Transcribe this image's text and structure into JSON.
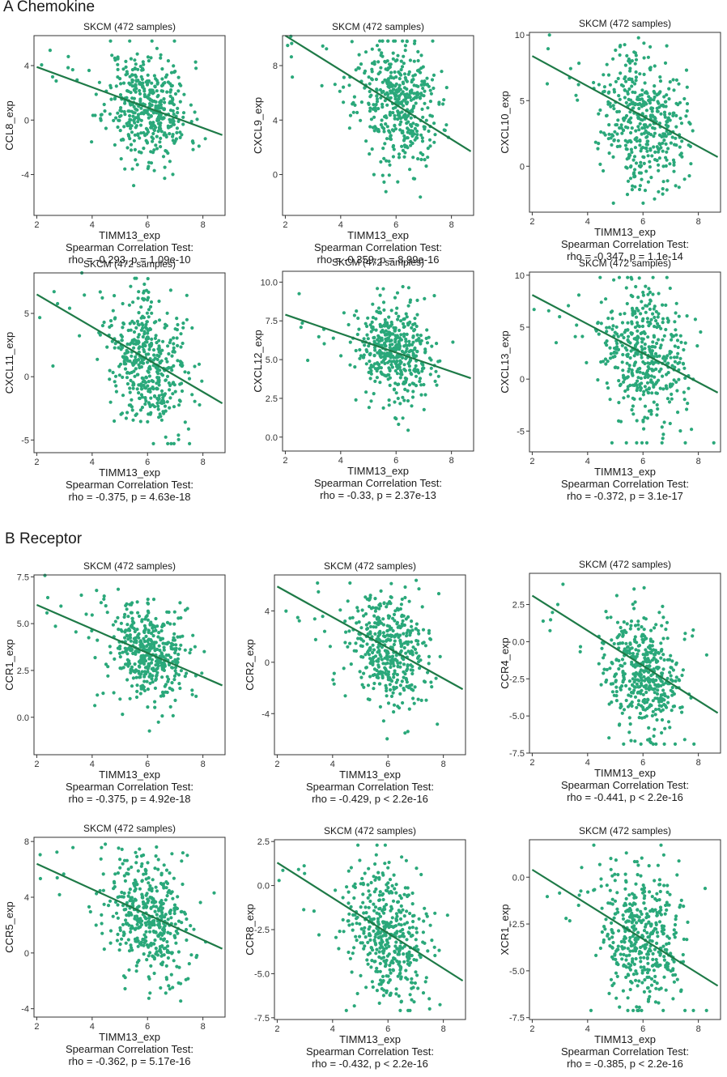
{
  "sections": {
    "a": {
      "label": "A Chemokine"
    },
    "b": {
      "label": "B  Receptor"
    }
  },
  "colors": {
    "point": "#2aa87a",
    "fit": "#1e7a47",
    "frame": "#333333"
  },
  "chart_data": [
    {
      "id": "ccl8",
      "type": "scatter",
      "title": "SKCM (472 samples)",
      "xlabel": "TIMM13_exp",
      "ylabel": "CCL8_exp",
      "stat_title": "Spearman Correlation Test:",
      "stat": "rho = -0.293, p = 1.09e-10",
      "xlim": [
        1.9,
        8.8
      ],
      "ylim": [
        -7,
        6.2
      ],
      "xticks": [
        2,
        4,
        6,
        8
      ],
      "yticks": [
        -4,
        0,
        4
      ],
      "ytick_labels": [
        "-4",
        "0",
        "4"
      ],
      "fit": [
        [
          2,
          3.9
        ],
        [
          8.7,
          -1.1
        ]
      ],
      "center": [
        6.0,
        1.0
      ],
      "spread": [
        0.75,
        2.0
      ],
      "n": 440,
      "seed": 11
    },
    {
      "id": "cxcl9",
      "type": "scatter",
      "title": "SKCM (472 samples)",
      "xlabel": "TIMM13_exp",
      "ylabel": "CXCL9_exp",
      "stat_title": "Spearman Correlation Test:",
      "stat": "rho = -0.359, p = 8.99e-16",
      "xlim": [
        1.9,
        8.8
      ],
      "ylim": [
        -3,
        10.2
      ],
      "xticks": [
        2,
        4,
        6,
        8
      ],
      "yticks": [
        0,
        4,
        8
      ],
      "ytick_labels": [
        "0",
        "4",
        "8"
      ],
      "fit": [
        [
          2,
          10.2
        ],
        [
          8.7,
          1.7
        ]
      ],
      "center": [
        6.0,
        5.3
      ],
      "spread": [
        0.75,
        2.3
      ],
      "n": 440,
      "seed": 23
    },
    {
      "id": "cxcl10",
      "type": "scatter",
      "title": "SKCM (472 samples)",
      "xlabel": "TIMM13_exp",
      "ylabel": "CXCL10_exp",
      "stat_title": "Spearman Correlation Test:",
      "stat": "rho = -0.347, p = 1.1e-14",
      "xlim": [
        1.9,
        8.8
      ],
      "ylim": [
        -3.5,
        10.2
      ],
      "xticks": [
        2,
        4,
        6,
        8
      ],
      "yticks": [
        0,
        5,
        10
      ],
      "ytick_labels": [
        "0",
        "5",
        "10"
      ],
      "fit": [
        [
          2,
          8.4
        ],
        [
          8.7,
          0.7
        ]
      ],
      "center": [
        6.0,
        3.7
      ],
      "spread": [
        0.75,
        2.6
      ],
      "n": 440,
      "seed": 37
    },
    {
      "id": "cxcl11",
      "type": "scatter",
      "title": "SKCM (472 samples)",
      "xlabel": "TIMM13_exp",
      "ylabel": "CXCL11_exp",
      "stat_title": "Spearman Correlation Test:",
      "stat": "rho = -0.375, p = 4.63e-18",
      "xlim": [
        1.9,
        8.8
      ],
      "ylim": [
        -6,
        8.2
      ],
      "xticks": [
        2,
        4,
        6,
        8
      ],
      "yticks": [
        -5,
        0,
        5
      ],
      "ytick_labels": [
        "-5",
        "0",
        "5"
      ],
      "fit": [
        [
          2,
          6.5
        ],
        [
          8.7,
          -2.1
        ]
      ],
      "center": [
        6.0,
        1.2
      ],
      "spread": [
        0.75,
        2.7
      ],
      "n": 440,
      "seed": 41
    },
    {
      "id": "cxcl12",
      "type": "scatter",
      "title": "SKCM (472 samples)",
      "xlabel": "TIMM13_exp",
      "ylabel": "CXCL12_exp",
      "stat_title": "Spearman Correlation Test:",
      "stat": "rho = -0.33, p = 2.37e-13",
      "xlim": [
        1.9,
        8.8
      ],
      "ylim": [
        -0.9,
        10.7
      ],
      "xticks": [
        2,
        4,
        6,
        8
      ],
      "yticks": [
        0,
        2.5,
        5,
        7.5,
        10
      ],
      "ytick_labels": [
        "0.0",
        "2.5",
        "5.0",
        "7.5",
        "10.0"
      ],
      "fit": [
        [
          2,
          7.9
        ],
        [
          8.7,
          3.8
        ]
      ],
      "center": [
        6.0,
        5.4
      ],
      "spread": [
        0.75,
        1.6
      ],
      "n": 440,
      "seed": 53
    },
    {
      "id": "cxcl13",
      "type": "scatter",
      "title": "SKCM (472 samples)",
      "xlabel": "TIMM13_exp",
      "ylabel": "CXCL13_exp",
      "stat_title": "Spearman Correlation Test:",
      "stat": "rho = -0.372, p = 3.1e-17",
      "xlim": [
        1.9,
        8.8
      ],
      "ylim": [
        -7,
        10.3
      ],
      "xticks": [
        2,
        4,
        6,
        8
      ],
      "yticks": [
        -5,
        0,
        5,
        10
      ],
      "ytick_labels": [
        "-5",
        "0",
        "5",
        "10"
      ],
      "fit": [
        [
          2,
          8.1
        ],
        [
          8.7,
          -1.3
        ]
      ],
      "center": [
        6.0,
        2.0
      ],
      "spread": [
        0.75,
        3.3
      ],
      "n": 440,
      "seed": 67
    },
    {
      "id": "ccr1",
      "type": "scatter",
      "title": "SKCM (472 samples)",
      "xlabel": "TIMM13_exp",
      "ylabel": "CCR1_exp",
      "stat_title": "Spearman Correlation Test:",
      "stat": "rho = -0.375, p = 4.92e-18",
      "xlim": [
        1.9,
        8.8
      ],
      "ylim": [
        -2.0,
        7.6
      ],
      "xticks": [
        2,
        4,
        6,
        8
      ],
      "yticks": [
        0,
        2.5,
        5,
        7.5
      ],
      "ytick_labels": [
        "0.0",
        "2.5",
        "5.0",
        "7.5"
      ],
      "fit": [
        [
          2,
          6.0
        ],
        [
          8.7,
          1.7
        ]
      ],
      "center": [
        6.0,
        3.4
      ],
      "spread": [
        0.75,
        1.3
      ],
      "n": 440,
      "seed": 71
    },
    {
      "id": "ccr2",
      "type": "scatter",
      "title": "SKCM (472 samples)",
      "xlabel": "TIMM13_exp",
      "ylabel": "CCR2_exp",
      "stat_title": "Spearman Correlation Test:",
      "stat": "rho = -0.429, p < 2.2e-16",
      "xlim": [
        1.9,
        8.8
      ],
      "ylim": [
        -7.2,
        6.8
      ],
      "xticks": [
        2,
        4,
        6,
        8
      ],
      "yticks": [
        -4,
        0,
        4
      ],
      "ytick_labels": [
        "-4",
        "0",
        "4"
      ],
      "fit": [
        [
          2,
          5.9
        ],
        [
          8.7,
          -2.1
        ]
      ],
      "center": [
        6.0,
        1.0
      ],
      "spread": [
        0.75,
        2.2
      ],
      "n": 440,
      "seed": 83
    },
    {
      "id": "ccr4",
      "type": "scatter",
      "title": "SKCM (472 samples)",
      "xlabel": "TIMM13_exp",
      "ylabel": "CCR4_exp",
      "stat_title": "Spearman Correlation Test:",
      "stat": "rho = -0.441, p < 2.2e-16",
      "xlim": [
        1.9,
        8.8
      ],
      "ylim": [
        -7.5,
        4.6
      ],
      "xticks": [
        2,
        4,
        6,
        8
      ],
      "yticks": [
        -7.5,
        -5,
        -2.5,
        0,
        2.5
      ],
      "ytick_labels": [
        "-7.5",
        "-5.0",
        "-2.5",
        "0.0",
        "2.5"
      ],
      "fit": [
        [
          2,
          3.1
        ],
        [
          8.7,
          -4.8
        ]
      ],
      "center": [
        6.0,
        -2.2
      ],
      "spread": [
        0.75,
        2.1
      ],
      "n": 440,
      "seed": 97
    },
    {
      "id": "ccr5",
      "type": "scatter",
      "title": "SKCM (472 samples)",
      "xlabel": "TIMM13_exp",
      "ylabel": "CCR5_exp",
      "stat_title": "Spearman Correlation Test:",
      "stat": "rho = -0.362, p = 5.17e-16",
      "xlim": [
        1.9,
        8.8
      ],
      "ylim": [
        -4.6,
        8.3
      ],
      "xticks": [
        2,
        4,
        6,
        8
      ],
      "yticks": [
        -4,
        0,
        4,
        8
      ],
      "ytick_labels": [
        "-4",
        "0",
        "4",
        "8"
      ],
      "fit": [
        [
          2,
          6.4
        ],
        [
          8.7,
          0.3
        ]
      ],
      "center": [
        6.0,
        2.7
      ],
      "spread": [
        0.75,
        2.2
      ],
      "n": 440,
      "seed": 101
    },
    {
      "id": "ccr8",
      "type": "scatter",
      "title": "SKCM (472 samples)",
      "xlabel": "TIMM13_exp",
      "ylabel": "CCR8_exp",
      "stat_title": "Spearman Correlation Test:",
      "stat": "rho = -0.432, p < 2.2e-16",
      "xlim": [
        1.9,
        8.8
      ],
      "ylim": [
        -7.6,
        2.6
      ],
      "xticks": [
        2,
        4,
        6,
        8
      ],
      "yticks": [
        -7.5,
        -5,
        -2.5,
        0,
        2.5
      ],
      "ytick_labels": [
        "-7.5",
        "-5.0",
        "-2.5",
        "0.0",
        "2.5"
      ],
      "fit": [
        [
          2,
          1.3
        ],
        [
          8.7,
          -5.4
        ]
      ],
      "center": [
        6.0,
        -2.8
      ],
      "spread": [
        0.75,
        1.9
      ],
      "n": 440,
      "seed": 113
    },
    {
      "id": "xcr1",
      "type": "scatter",
      "title": "SKCM (472 samples)",
      "xlabel": "TIMM13_exp",
      "ylabel": "XCR1_exp",
      "stat_title": "Spearman Correlation Test:",
      "stat": "rho = -0.385, p < 2.2e-16",
      "xlim": [
        1.9,
        8.8
      ],
      "ylim": [
        -7.6,
        2.0
      ],
      "xticks": [
        2,
        4,
        6,
        8
      ],
      "yticks": [
        -7.5,
        -5,
        -2.5,
        0
      ],
      "ytick_labels": [
        "-7.5",
        "-5.0",
        "-2.5",
        "0.0"
      ],
      "fit": [
        [
          2,
          0.4
        ],
        [
          8.7,
          -5.8
        ]
      ],
      "center": [
        6.0,
        -3.3
      ],
      "spread": [
        0.75,
        1.9
      ],
      "n": 440,
      "seed": 127
    }
  ]
}
